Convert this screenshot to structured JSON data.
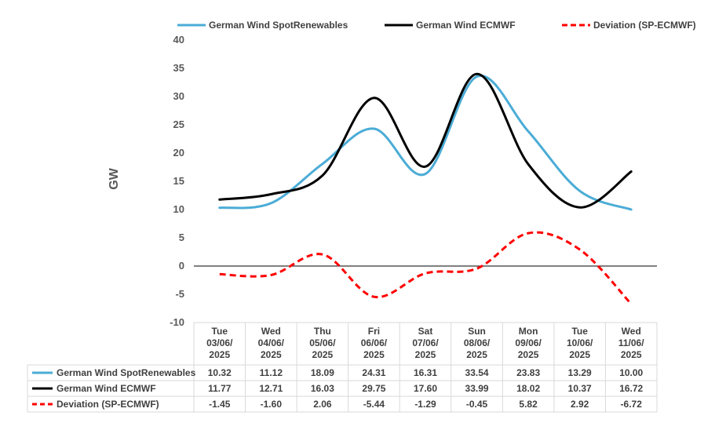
{
  "chart_data": {
    "type": "line",
    "ylabel": "GW",
    "ylim": [
      -10,
      40
    ],
    "yticks": [
      -10,
      -5,
      0,
      5,
      10,
      15,
      20,
      25,
      30,
      35,
      40
    ],
    "categories": [
      [
        "Tue",
        "03/06/",
        "2025"
      ],
      [
        "Wed",
        "04/06/",
        "2025"
      ],
      [
        "Thu",
        "05/06/",
        "2025"
      ],
      [
        "Fri",
        "06/06/",
        "2025"
      ],
      [
        "Sat",
        "07/06/",
        "2025"
      ],
      [
        "Sun",
        "08/06/",
        "2025"
      ],
      [
        "Mon",
        "09/06/",
        "2025"
      ],
      [
        "Tue",
        "10/06/",
        "2025"
      ],
      [
        "Wed",
        "11/06/",
        "2025"
      ]
    ],
    "legend_position": "top",
    "series": [
      {
        "name": "German Wind SpotRenewables",
        "color": "#4bacd6",
        "dash": "solid",
        "values": [
          10.32,
          11.12,
          18.09,
          24.31,
          16.31,
          33.54,
          23.83,
          13.29,
          10.0
        ],
        "labels": [
          "10.32",
          "11.12",
          "18.09",
          "24.31",
          "16.31",
          "33.54",
          "23.83",
          "13.29",
          "10.00"
        ]
      },
      {
        "name": "German Wind ECMWF",
        "color": "#000000",
        "dash": "solid",
        "values": [
          11.77,
          12.71,
          16.03,
          29.75,
          17.6,
          33.99,
          18.02,
          10.37,
          16.72
        ],
        "labels": [
          "11.77",
          "12.71",
          "16.03",
          "29.75",
          "17.60",
          "33.99",
          "18.02",
          "10.37",
          "16.72"
        ]
      },
      {
        "name": "Deviation (SP-ECMWF)",
        "color": "#ff0000",
        "dash": "dashed",
        "values": [
          -1.45,
          -1.6,
          2.06,
          -5.44,
          -1.29,
          -0.45,
          5.82,
          2.92,
          -6.72
        ],
        "labels": [
          "-1.45",
          "-1.60",
          "2.06",
          "-5.44",
          "-1.29",
          "-0.45",
          "5.82",
          "2.92",
          "-6.72"
        ]
      }
    ]
  }
}
